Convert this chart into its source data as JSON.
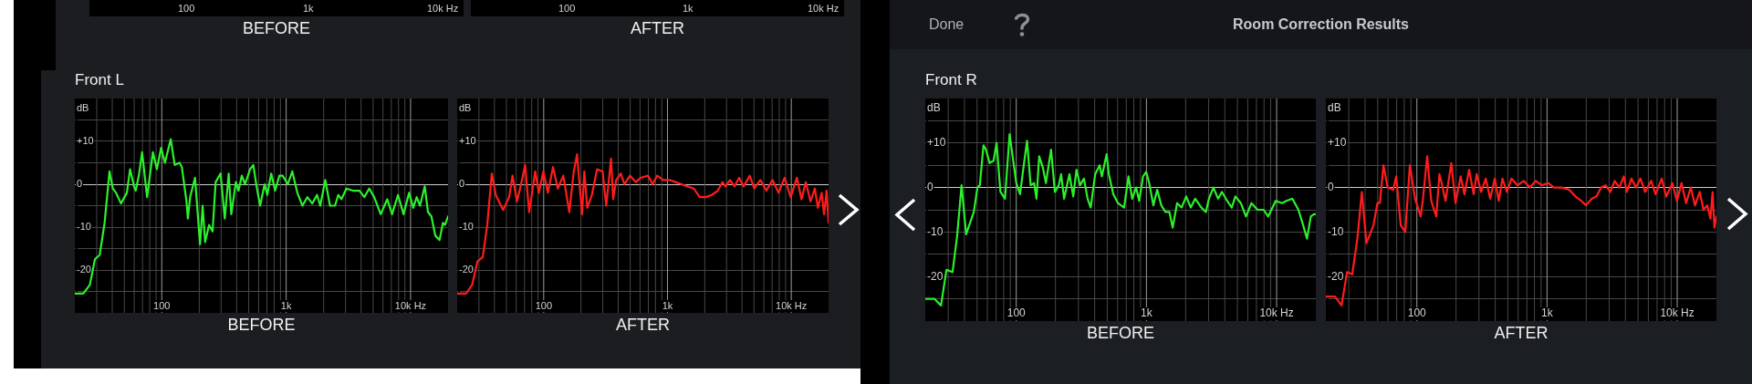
{
  "chart_data": [
    {
      "type": "other",
      "xlabel": "BEFORE",
      "annotations": [
        "100",
        "1k",
        "10k Hz"
      ]
    },
    {
      "type": "other",
      "xlabel": "AFTER",
      "annotations": [
        "100",
        "1k",
        "10k Hz"
      ]
    },
    {
      "type": "other",
      "title": "Room Correction Results",
      "annotations": [
        "Done"
      ]
    },
    {
      "type": "line",
      "title": "Front L",
      "xlabel": "BEFORE",
      "ylabel": "dB",
      "color": "#2cf02c",
      "marker": "none",
      "line_style": "solid",
      "x": [
        20,
        23.4,
        26.4,
        29,
        31.7,
        34.7,
        38,
        40.4,
        42.9,
        47,
        52.4,
        55.6,
        59.8,
        61.7,
        65.4,
        69.5,
        76.2,
        84.9,
        91.3,
        98.8,
        106,
        118,
        127,
        139,
        145,
        158,
        162,
        169,
        185,
        203,
        213,
        223,
        240,
        256,
        271,
        297,
        321,
        345,
        362,
        394,
        414,
        440,
        467,
        512,
        544,
        578,
        617,
        671,
        705,
        758,
        815,
        881,
        937,
        1030,
        1120,
        1230,
        1350,
        1480,
        1620,
        1770,
        1880,
        2060,
        2250,
        2470,
        2620,
        2780,
        3050,
        3440,
        3880,
        4250,
        4650,
        5100,
        5750,
        6490,
        7100,
        7920,
        8780,
        9730,
        10500,
        11200,
        11900,
        13000,
        13800,
        14700,
        15800,
        17100,
        18200,
        18900,
        20000
      ],
      "values": [
        -25.5,
        -25.5,
        -23.5,
        -17.5,
        -16.5,
        -9,
        3,
        -1,
        -2,
        -4.5,
        -2,
        3.5,
        -0.5,
        -1.5,
        2,
        7.5,
        -3,
        7.5,
        3.5,
        8.5,
        5,
        10.5,
        4.5,
        5,
        4,
        -4,
        -8,
        -3,
        1.5,
        -14,
        -5,
        -13.5,
        -9.5,
        -11,
        0.5,
        2.5,
        -8,
        2.5,
        -7,
        0.5,
        -1.5,
        2,
        0,
        3.5,
        4.5,
        -0.5,
        -5,
        0,
        -2.5,
        2.5,
        -1.5,
        2,
        2,
        0,
        3,
        -2,
        -5,
        -3,
        -4.5,
        -2.5,
        -5,
        1,
        -5,
        -5,
        -2.5,
        -3.5,
        -1,
        -1.5,
        -1.5,
        -3,
        -1,
        -3,
        -7,
        -3.5,
        -7,
        -2.5,
        -7,
        -2,
        -5.5,
        -3,
        -5,
        -0.5,
        -6.5,
        -7.5,
        -12,
        -13,
        -9,
        -9.5,
        -7.5
      ],
      "xlim": [
        20,
        20000
      ],
      "ylim": [
        -30,
        20
      ],
      "xticks": [
        {
          "value": 30,
          "label": null
        },
        {
          "value": 40,
          "label": null
        },
        {
          "value": 50,
          "label": null
        },
        {
          "value": 60,
          "label": null
        },
        {
          "value": 70,
          "label": null
        },
        {
          "value": 80,
          "label": null
        },
        {
          "value": 90,
          "label": null
        },
        {
          "value": 100,
          "label": "100"
        },
        {
          "value": 200,
          "label": null
        },
        {
          "value": 300,
          "label": null
        },
        {
          "value": 400,
          "label": null
        },
        {
          "value": 500,
          "label": null
        },
        {
          "value": 600,
          "label": null
        },
        {
          "value": 700,
          "label": null
        },
        {
          "value": 800,
          "label": null
        },
        {
          "value": 900,
          "label": null
        },
        {
          "value": 1000,
          "label": "1k"
        },
        {
          "value": 2000,
          "label": null
        },
        {
          "value": 3000,
          "label": null
        },
        {
          "value": 4000,
          "label": null
        },
        {
          "value": 5000,
          "label": null
        },
        {
          "value": 6000,
          "label": null
        },
        {
          "value": 7000,
          "label": null
        },
        {
          "value": 8000,
          "label": null
        },
        {
          "value": 9000,
          "label": null
        },
        {
          "value": 10000,
          "label": "10k Hz"
        }
      ],
      "yticks": [
        {
          "value": 15,
          "label": null
        },
        {
          "value": 10,
          "label": "+10"
        },
        {
          "value": 5,
          "label": null
        },
        0,
        {
          "value": -5,
          "label": null
        },
        -10,
        {
          "value": -15,
          "label": null
        },
        -20,
        {
          "value": -25,
          "label": null
        }
      ],
      "log": "x",
      "grid": true
    },
    {
      "type": "line",
      "xlabel": "AFTER",
      "ylabel": "dB",
      "color": "#ff1c1c",
      "marker": "none",
      "line_style": "solid",
      "x": [
        20,
        23.6,
        26.4,
        29.2,
        32.2,
        35,
        38.1,
        41,
        47,
        52.6,
        56,
        60.8,
        65.1,
        70.8,
        76.3,
        85.4,
        91.4,
        99.4,
        108,
        119,
        130,
        144,
        161,
        175,
        186,
        204,
        213,
        225,
        245,
        270,
        299,
        320,
        350,
        364,
        385,
        420,
        449,
        497,
        556,
        605,
        697,
        758,
        826,
        925,
        1040,
        1160,
        1300,
        1450,
        1630,
        1820,
        2040,
        2280,
        2550,
        2780,
        2940,
        3200,
        3480,
        3790,
        4120,
        4620,
        5020,
        5620,
        6300,
        7050,
        7890,
        8830,
        9890,
        11100,
        12100,
        13100,
        14300,
        15500,
        16400,
        17600,
        18400,
        19300,
        20000
      ],
      "values": [
        -25.5,
        -25.5,
        -23.5,
        -18,
        -17,
        -9.5,
        2.5,
        -2.5,
        -6,
        -3,
        2,
        -4,
        -0.5,
        4.5,
        -6.5,
        3,
        -2,
        3,
        -2,
        4,
        -1,
        2,
        -6.5,
        3,
        7,
        -7,
        3,
        -5.5,
        -2.5,
        3.5,
        3,
        -5,
        6,
        -3.5,
        1,
        2.5,
        0,
        2,
        0.5,
        1.5,
        2,
        0,
        2,
        1,
        1,
        0.5,
        0,
        -0.5,
        -1,
        -3,
        -3,
        -2.5,
        -1.5,
        0.5,
        -0.5,
        1,
        -0.5,
        1.5,
        -0.5,
        2,
        -1,
        1,
        -1.5,
        1,
        -2,
        1.5,
        -3,
        1.5,
        -3.5,
        0.5,
        -4,
        -1,
        -5.5,
        -2,
        -7,
        -1.5,
        -9
      ],
      "xlim": [
        20,
        20000
      ],
      "ylim": [
        -30,
        20
      ],
      "xticks": [
        {
          "value": 30,
          "label": null
        },
        {
          "value": 40,
          "label": null
        },
        {
          "value": 50,
          "label": null
        },
        {
          "value": 60,
          "label": null
        },
        {
          "value": 70,
          "label": null
        },
        {
          "value": 80,
          "label": null
        },
        {
          "value": 90,
          "label": null
        },
        {
          "value": 100,
          "label": "100"
        },
        {
          "value": 200,
          "label": null
        },
        {
          "value": 300,
          "label": null
        },
        {
          "value": 400,
          "label": null
        },
        {
          "value": 500,
          "label": null
        },
        {
          "value": 600,
          "label": null
        },
        {
          "value": 700,
          "label": null
        },
        {
          "value": 800,
          "label": null
        },
        {
          "value": 900,
          "label": null
        },
        {
          "value": 1000,
          "label": "1k"
        },
        {
          "value": 2000,
          "label": null
        },
        {
          "value": 3000,
          "label": null
        },
        {
          "value": 4000,
          "label": null
        },
        {
          "value": 5000,
          "label": null
        },
        {
          "value": 6000,
          "label": null
        },
        {
          "value": 7000,
          "label": null
        },
        {
          "value": 8000,
          "label": null
        },
        {
          "value": 9000,
          "label": null
        },
        {
          "value": 10000,
          "label": "10k Hz"
        }
      ],
      "yticks": [
        {
          "value": 15,
          "label": null
        },
        {
          "value": 10,
          "label": "+10"
        },
        {
          "value": 5,
          "label": null
        },
        0,
        {
          "value": -5,
          "label": null
        },
        -10,
        {
          "value": -15,
          "label": null
        },
        -20,
        {
          "value": -25,
          "label": null
        }
      ],
      "log": "x",
      "grid": true
    },
    {
      "type": "line",
      "title": "Front R",
      "xlabel": "BEFORE",
      "ylabel": "dB",
      "color": "#2cf02c",
      "marker": "none",
      "line_style": "solid",
      "x": [
        20,
        23.5,
        26.4,
        29.1,
        32.4,
        35.1,
        38,
        41.2,
        47.2,
        50.3,
        52.5,
        56,
        58.5,
        62.4,
        66.9,
        70.6,
        75.6,
        81.9,
        88.9,
        94.8,
        100,
        107,
        113,
        121,
        129,
        137,
        143,
        150,
        160,
        169,
        185,
        198,
        212,
        221,
        233,
        256,
        274,
        290,
        309,
        331,
        353,
        373,
        404,
        437,
        454,
        495,
        514,
        557,
        604,
        673,
        728,
        777,
        833,
        879,
        942,
        995,
        1050,
        1130,
        1210,
        1300,
        1400,
        1500,
        1590,
        1720,
        1860,
        2020,
        2190,
        2370,
        2640,
        2860,
        3020,
        3270,
        3550,
        3800,
        4170,
        4520,
        4820,
        5310,
        5820,
        6410,
        7130,
        7940,
        8610,
        9840,
        11000,
        11900,
        13200,
        14700,
        16000,
        17100,
        18300,
        19300,
        20000
      ],
      "values": [
        -25,
        -25,
        -26.5,
        -18.5,
        -19,
        -11,
        0.5,
        -10.5,
        -5.5,
        0,
        0.5,
        9.5,
        8.5,
        5.5,
        6,
        10,
        -1,
        -2.5,
        12,
        6,
        1,
        -1.5,
        4,
        10.5,
        0.5,
        1,
        -2.5,
        7,
        4.5,
        1,
        8.5,
        -1,
        0.5,
        3,
        -2.5,
        3,
        -2,
        4,
        0.5,
        2,
        -2.5,
        -4.5,
        3,
        5,
        2.5,
        7.5,
        3,
        -1.5,
        -3.5,
        -4.5,
        2.5,
        -2.5,
        0,
        -3,
        2.5,
        3.5,
        1,
        -4,
        -0.5,
        -4,
        -5.5,
        -5.5,
        -9,
        -3.5,
        -4.5,
        -2,
        -4.5,
        -2.5,
        -4.5,
        -5.5,
        -2.5,
        0,
        -2.5,
        -1,
        -3,
        -4.5,
        -2,
        -3.5,
        -6.5,
        -3.5,
        -5,
        -5,
        -6.5,
        -3,
        -3.5,
        -3,
        -2.5,
        -5,
        -8.5,
        -11.5,
        -6.5,
        -6,
        -6
      ],
      "xlim": [
        20,
        20000
      ],
      "ylim": [
        -30,
        20
      ],
      "xticks": [
        {
          "value": 30,
          "label": null
        },
        {
          "value": 40,
          "label": null
        },
        {
          "value": 50,
          "label": null
        },
        {
          "value": 60,
          "label": null
        },
        {
          "value": 70,
          "label": null
        },
        {
          "value": 80,
          "label": null
        },
        {
          "value": 90,
          "label": null
        },
        {
          "value": 100,
          "label": "100"
        },
        {
          "value": 200,
          "label": null
        },
        {
          "value": 300,
          "label": null
        },
        {
          "value": 400,
          "label": null
        },
        {
          "value": 500,
          "label": null
        },
        {
          "value": 600,
          "label": null
        },
        {
          "value": 700,
          "label": null
        },
        {
          "value": 800,
          "label": null
        },
        {
          "value": 900,
          "label": null
        },
        {
          "value": 1000,
          "label": "1k"
        },
        {
          "value": 2000,
          "label": null
        },
        {
          "value": 3000,
          "label": null
        },
        {
          "value": 4000,
          "label": null
        },
        {
          "value": 5000,
          "label": null
        },
        {
          "value": 6000,
          "label": null
        },
        {
          "value": 7000,
          "label": null
        },
        {
          "value": 8000,
          "label": null
        },
        {
          "value": 9000,
          "label": null
        },
        {
          "value": 10000,
          "label": "10k Hz"
        }
      ],
      "yticks": [
        {
          "value": 15,
          "label": null
        },
        {
          "value": 10,
          "label": "+10"
        },
        {
          "value": 5,
          "label": null
        },
        0,
        {
          "value": -5,
          "label": null
        },
        -10,
        {
          "value": -15,
          "label": null
        },
        -20,
        {
          "value": -25,
          "label": null
        }
      ],
      "log": "x",
      "grid": true
    },
    {
      "type": "line",
      "xlabel": "AFTER",
      "ylabel": "dB",
      "color": "#ff1c1c",
      "marker": "none",
      "line_style": "solid",
      "x": [
        20,
        23.5,
        26.4,
        29.1,
        31.9,
        34.9,
        37.8,
        41,
        46.4,
        49.8,
        52,
        55.4,
        59.7,
        65.8,
        69.4,
        75.2,
        81.5,
        88.4,
        96.9,
        107,
        111,
        120,
        129,
        141,
        149,
        155,
        166,
        184,
        198,
        217,
        232,
        252,
        273,
        288,
        312,
        338,
        366,
        397,
        426,
        454,
        492,
        533,
        594,
        662,
        737,
        820,
        913,
        1020,
        1130,
        1300,
        1480,
        1650,
        1830,
        1990,
        2210,
        2400,
        2600,
        2820,
        3060,
        3310,
        3590,
        3890,
        4100,
        4450,
        4820,
        5220,
        5660,
        6310,
        6820,
        7600,
        8240,
        9180,
        9950,
        10800,
        11700,
        12700,
        13700,
        14900,
        15900,
        17000,
        18000,
        18700,
        19300,
        20000
      ],
      "values": [
        -24.5,
        -24.5,
        -26.5,
        -19,
        -19.5,
        -11.5,
        -1,
        -12.5,
        -8.5,
        -3.5,
        -3.5,
        5,
        0,
        -0.5,
        2.5,
        -8.5,
        -10,
        5,
        -2.5,
        -6.5,
        -3,
        7,
        -3,
        -6.5,
        3,
        1,
        -3,
        5.5,
        -3.5,
        2.5,
        -1.5,
        4,
        -1.5,
        3,
        -1,
        2,
        -2.5,
        2,
        -3,
        2,
        -1,
        2,
        0.5,
        1.5,
        0,
        1.5,
        0.5,
        1,
        0,
        0,
        -0.5,
        -2,
        -3,
        -4,
        -2.5,
        -2,
        0,
        0.5,
        -1,
        1.5,
        0,
        2.5,
        -1,
        2,
        0,
        2,
        -1,
        1.5,
        -1.5,
        2,
        -2,
        1,
        -3,
        1,
        -3.5,
        0,
        -4,
        -1,
        -5,
        -4,
        -7,
        -1,
        -9,
        -6.5
      ],
      "xlim": [
        20,
        20000
      ],
      "ylim": [
        -30,
        20
      ],
      "xticks": [
        {
          "value": 30,
          "label": null
        },
        {
          "value": 40,
          "label": null
        },
        {
          "value": 50,
          "label": null
        },
        {
          "value": 60,
          "label": null
        },
        {
          "value": 70,
          "label": null
        },
        {
          "value": 80,
          "label": null
        },
        {
          "value": 90,
          "label": null
        },
        {
          "value": 100,
          "label": "100"
        },
        {
          "value": 200,
          "label": null
        },
        {
          "value": 300,
          "label": null
        },
        {
          "value": 400,
          "label": null
        },
        {
          "value": 500,
          "label": null
        },
        {
          "value": 600,
          "label": null
        },
        {
          "value": 700,
          "label": null
        },
        {
          "value": 800,
          "label": null
        },
        {
          "value": 900,
          "label": null
        },
        {
          "value": 1000,
          "label": "1k"
        },
        {
          "value": 2000,
          "label": null
        },
        {
          "value": 3000,
          "label": null
        },
        {
          "value": 4000,
          "label": null
        },
        {
          "value": 5000,
          "label": null
        },
        {
          "value": 6000,
          "label": null
        },
        {
          "value": 7000,
          "label": null
        },
        {
          "value": 8000,
          "label": null
        },
        {
          "value": 9000,
          "label": null
        },
        {
          "value": 10000,
          "label": "10k Hz"
        }
      ],
      "yticks": [
        {
          "value": 15,
          "label": null
        },
        {
          "value": 10,
          "label": "+10"
        },
        {
          "value": 5,
          "label": null
        },
        0,
        {
          "value": -5,
          "label": null
        },
        -10,
        {
          "value": -15,
          "label": null
        },
        -20,
        {
          "value": -25,
          "label": null
        }
      ],
      "log": "x",
      "grid": true
    }
  ]
}
